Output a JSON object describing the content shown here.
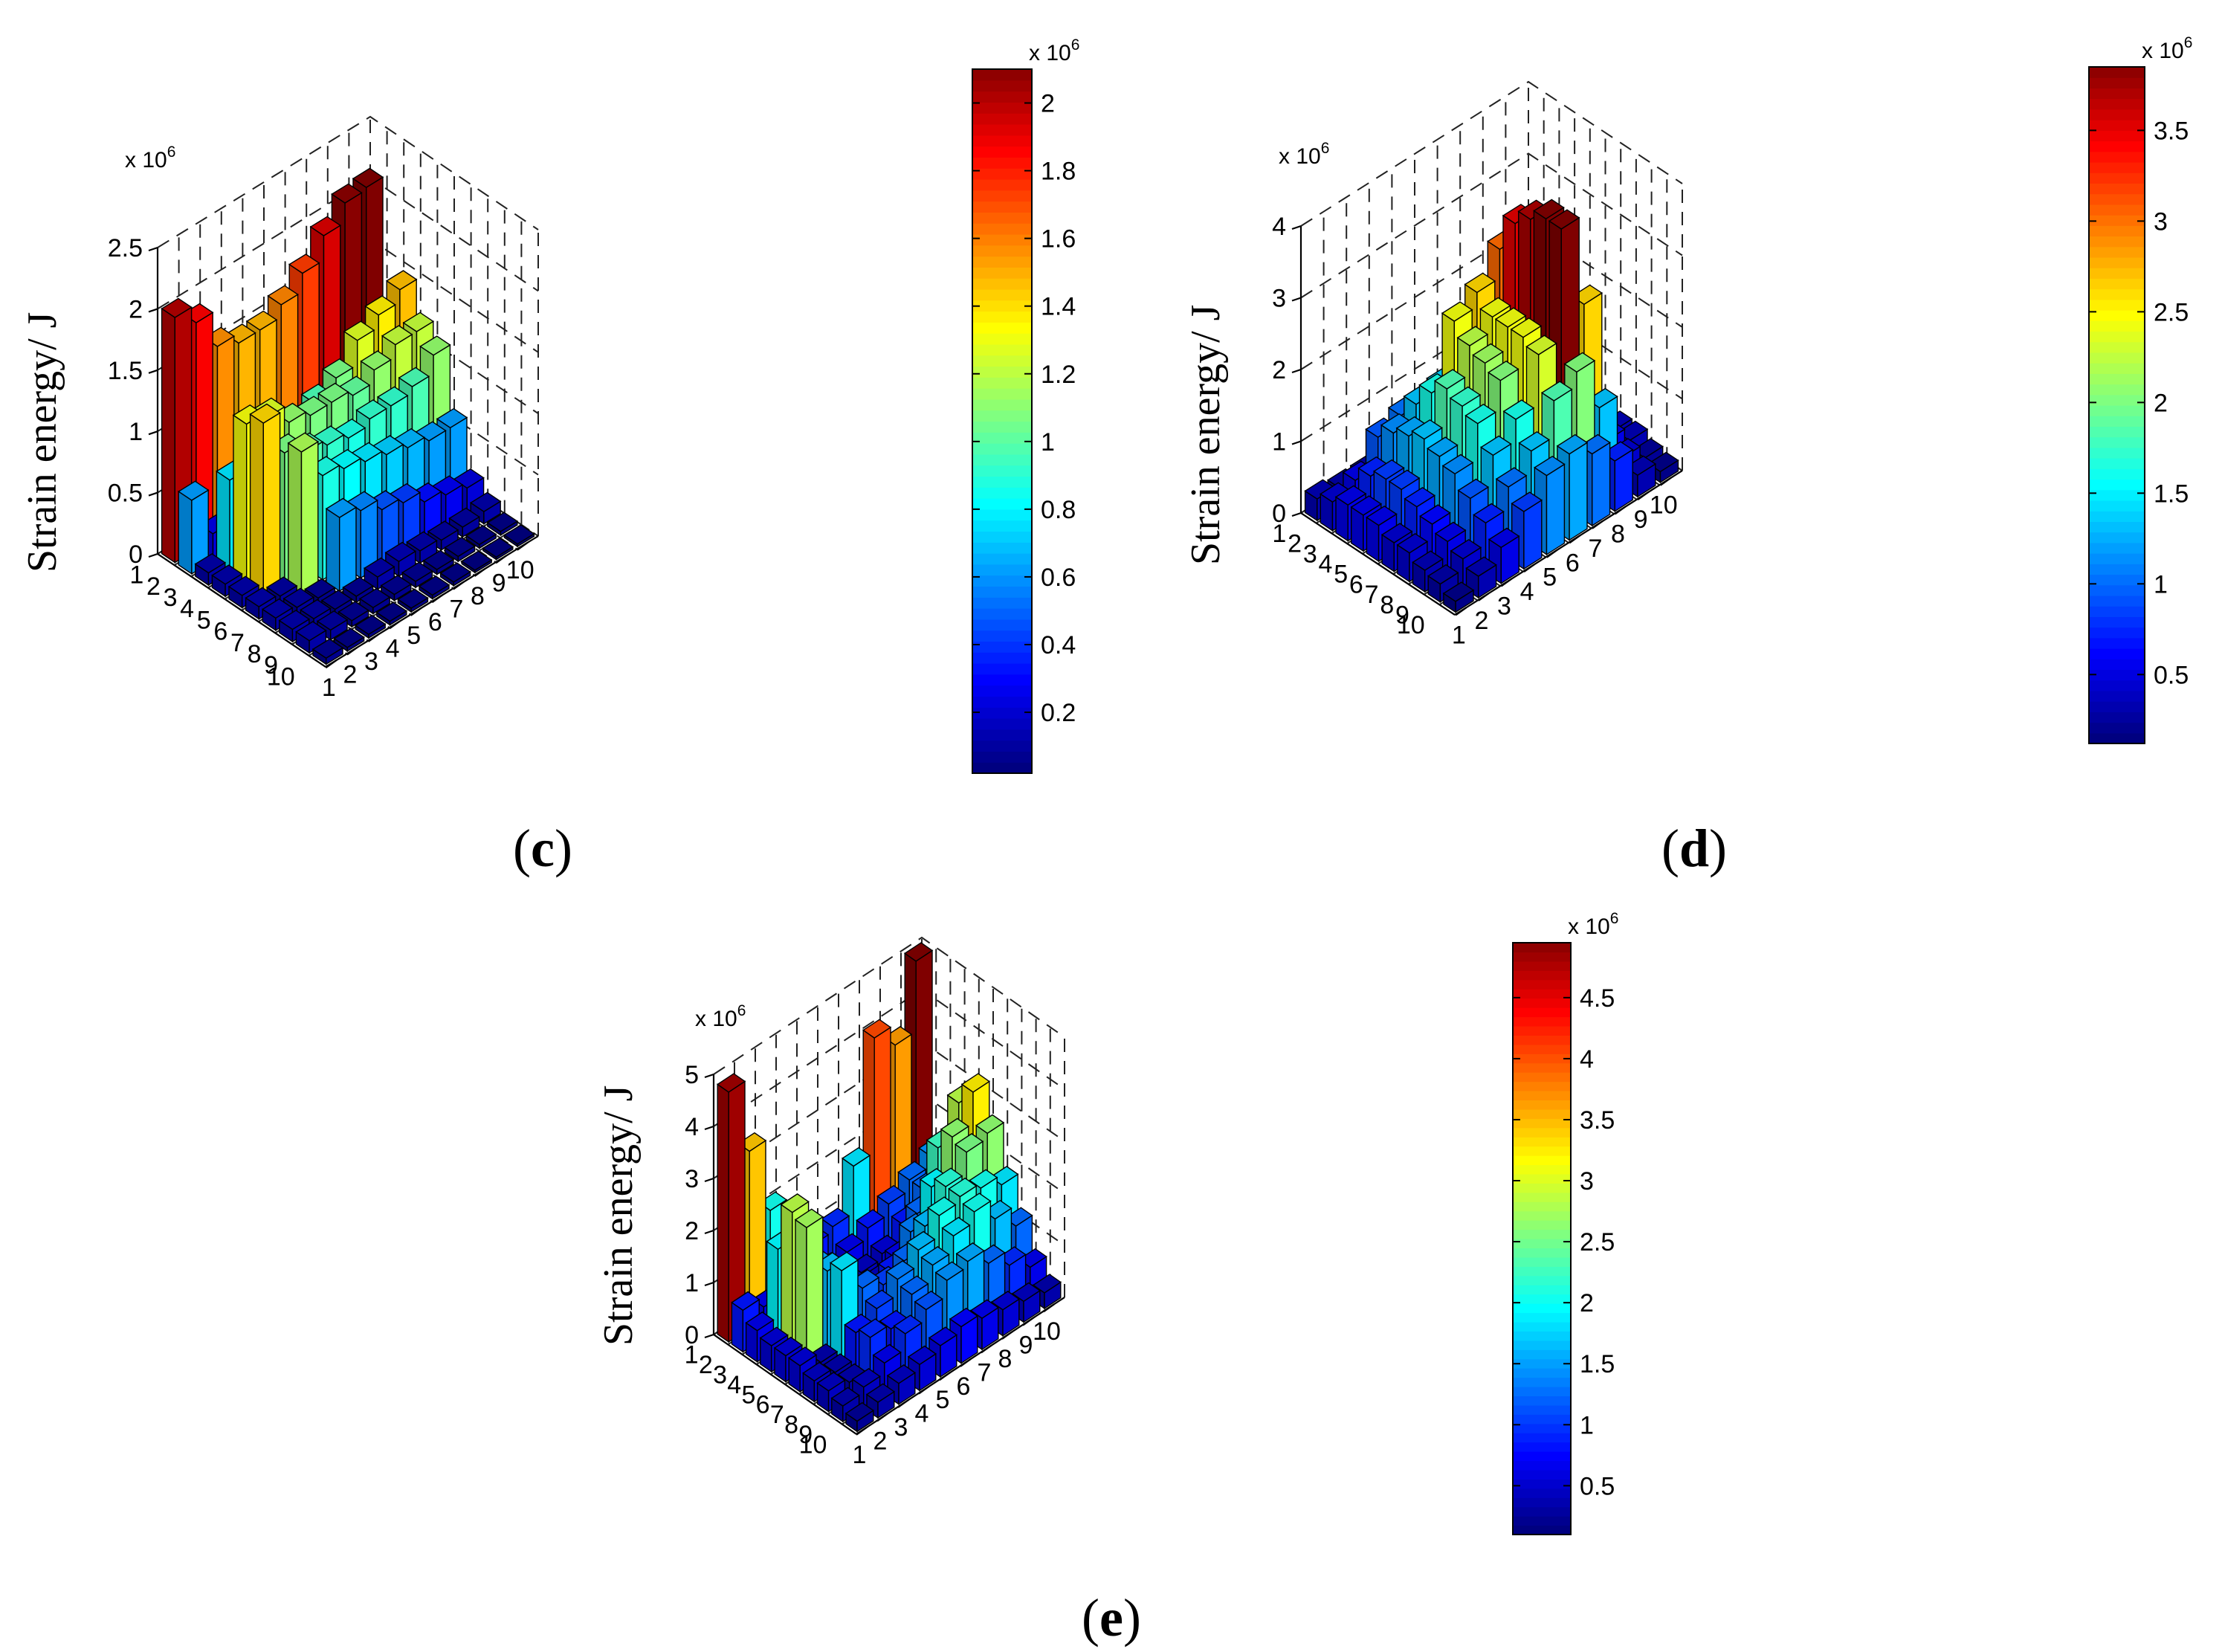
{
  "figure": {
    "colormap": "jet",
    "panels": [
      {
        "id": "c",
        "label_open": "(",
        "label_letter": "c",
        "label_close": ")"
      },
      {
        "id": "d",
        "label_open": "(",
        "label_letter": "d",
        "label_close": ")"
      },
      {
        "id": "e",
        "label_open": "(",
        "label_letter": "e",
        "label_close": ")"
      }
    ]
  },
  "chart_data": [
    {
      "type": "bar3d",
      "panel": "c",
      "title": "(c)",
      "zlabel": "Strain energy/ J",
      "z_multiplier_text": "x 10",
      "z_multiplier_exp": "6",
      "row_ticks": [
        "1",
        "2",
        "3",
        "4",
        "5",
        "6",
        "7",
        "8",
        "9",
        "10"
      ],
      "col_ticks": [
        "1",
        "2",
        "3",
        "4",
        "5",
        "6",
        "7",
        "8",
        "9",
        "10"
      ],
      "zlim": [
        0,
        2.5
      ],
      "z_ticks": [
        0,
        0.5,
        1,
        1.5,
        2,
        2.5
      ],
      "z_tick_labels": [
        "0",
        "0.5",
        "1",
        "1.5",
        "2",
        "2.5"
      ],
      "colorbar": {
        "range": [
          0.02,
          2.1
        ],
        "ticks": [
          0.2,
          0.4,
          0.6,
          0.8,
          1,
          1.2,
          1.4,
          1.6,
          1.8,
          2
        ],
        "tick_labels": [
          "0.2",
          "0.4",
          "0.6",
          "0.8",
          "1",
          "1.2",
          "1.4",
          "1.6",
          "1.8",
          "2"
        ],
        "multiplier_text": "x 10",
        "multiplier_exp": "6"
      },
      "values": [
        [
          2.0,
          1.85,
          1.55,
          1.47,
          1.47,
          1.57,
          1.72,
          1.92,
          2.08,
          2.1
        ],
        [
          0.6,
          0.22,
          0.15,
          0.2,
          0.25,
          0.3,
          0.45,
          0.55,
          0.65,
          0.75
        ],
        [
          0.1,
          0.75,
          0.7,
          0.8,
          0.85,
          0.95,
          1.05,
          1.25,
          1.35,
          1.45
        ],
        [
          0.1,
          1.3,
          1.25,
          1.1,
          1.05,
          1.05,
          1.0,
          1.1,
          1.2,
          1.2
        ],
        [
          0.1,
          1.4,
          1.05,
          0.95,
          0.9,
          0.85,
          0.9,
          0.9,
          0.95,
          1.1
        ],
        [
          0.1,
          0.08,
          1.15,
          0.85,
          0.8,
          0.75,
          0.7,
          0.65,
          0.6,
          0.6
        ],
        [
          0.1,
          0.08,
          0.05,
          0.6,
          0.55,
          0.45,
          0.4,
          0.3,
          0.25,
          0.2
        ],
        [
          0.1,
          0.08,
          0.05,
          0.05,
          0.1,
          0.12,
          0.1,
          0.08,
          0.08,
          0.1
        ],
        [
          0.1,
          0.08,
          0.05,
          0.05,
          0.05,
          0.05,
          0.04,
          0.04,
          0.03,
          0.03
        ],
        [
          0.05,
          0.03,
          0.03,
          0.03,
          0.03,
          0.03,
          0.03,
          0.02,
          0.02,
          0.02
        ]
      ]
    },
    {
      "type": "bar3d",
      "panel": "d",
      "title": "(d)",
      "zlabel": "Strain energy/ J",
      "z_multiplier_text": "x 10",
      "z_multiplier_exp": "6",
      "row_ticks": [
        "1",
        "2",
        "3",
        "4",
        "5",
        "6",
        "7",
        "8",
        "9",
        "10"
      ],
      "col_ticks": [
        "1",
        "2",
        "3",
        "4",
        "5",
        "6",
        "7",
        "8",
        "9",
        "10"
      ],
      "zlim": [
        0,
        4
      ],
      "z_ticks": [
        0,
        1,
        2,
        3,
        4
      ],
      "z_tick_labels": [
        "0",
        "1",
        "2",
        "3",
        "4"
      ],
      "colorbar": {
        "range": [
          0.12,
          3.85
        ],
        "ticks": [
          0.5,
          1,
          1.5,
          2,
          2.5,
          3,
          3.5
        ],
        "tick_labels": [
          "0.5",
          "1",
          "1.5",
          "2",
          "2.5",
          "3",
          "3.5"
        ],
        "multiplier_text": "x 10",
        "multiplier_exp": "6"
      },
      "values": [
        [
          0.3,
          0.25,
          0.25,
          0.3,
          0.4,
          0.45,
          0.5,
          0.45,
          0.35,
          0.3
        ],
        [
          0.4,
          0.5,
          0.9,
          1.0,
          0.9,
          0.6,
          0.45,
          0.35,
          0.3,
          0.25
        ],
        [
          0.5,
          0.7,
          1.1,
          1.3,
          1.35,
          1.2,
          0.7,
          0.45,
          0.35,
          0.3
        ],
        [
          0.5,
          0.8,
          1.2,
          1.6,
          2.4,
          2.6,
          3.0,
          1.2,
          0.6,
          0.4
        ],
        [
          0.5,
          0.8,
          1.3,
          1.8,
          2.2,
          2.4,
          3.5,
          1.2,
          0.7,
          0.4
        ],
        [
          0.4,
          0.7,
          1.2,
          1.7,
          2.1,
          2.4,
          3.7,
          1.0,
          0.7,
          0.4
        ],
        [
          0.4,
          0.6,
          1.1,
          1.6,
          2.0,
          2.4,
          3.85,
          1.0,
          0.6,
          0.3
        ],
        [
          0.3,
          0.5,
          0.9,
          1.3,
          1.6,
          2.3,
          3.85,
          2.6,
          0.5,
          0.3
        ],
        [
          0.25,
          0.4,
          0.7,
          1.0,
          1.3,
          1.8,
          2.0,
          1.3,
          0.4,
          0.2
        ],
        [
          0.15,
          0.3,
          0.5,
          0.8,
          1.1,
          1.2,
          1.0,
          0.7,
          0.3,
          0.15
        ]
      ]
    },
    {
      "type": "bar3d",
      "panel": "e",
      "title": "(e)",
      "zlabel": "Strain energy/ J",
      "z_multiplier_text": "x 10",
      "z_multiplier_exp": "6",
      "row_ticks": [
        "1",
        "2",
        "3",
        "4",
        "5",
        "6",
        "7",
        "8",
        "9",
        "10"
      ],
      "col_ticks": [
        "1",
        "2",
        "3",
        "4",
        "5",
        "6",
        "7",
        "8",
        "9",
        "10"
      ],
      "zlim": [
        0,
        5
      ],
      "z_ticks": [
        0,
        1,
        2,
        3,
        4,
        5
      ],
      "z_tick_labels": [
        "0",
        "1",
        "2",
        "3",
        "4",
        "5"
      ],
      "colorbar": {
        "range": [
          0.1,
          4.95
        ],
        "ticks": [
          0.5,
          1,
          1.5,
          2,
          2.5,
          3,
          3.5,
          4,
          4.5
        ],
        "tick_labels": [
          "0.5",
          "1",
          "1.5",
          "2",
          "2.5",
          "3",
          "3.5",
          "4",
          "4.5"
        ],
        "multiplier_text": "x 10",
        "multiplier_exp": "6"
      },
      "values": [
        [
          4.8,
          3.4,
          2.0,
          1.2,
          0.8,
          0.9,
          1.8,
          4.0,
          3.6,
          4.95
        ],
        [
          0.8,
          0.6,
          0.5,
          0.4,
          0.5,
          0.6,
          0.8,
          1.0,
          1.2,
          1.4
        ],
        [
          0.6,
          1.9,
          0.4,
          0.3,
          0.3,
          0.4,
          0.5,
          0.8,
          1.2,
          1.6
        ],
        [
          0.5,
          2.8,
          1.5,
          0.4,
          0.3,
          0.4,
          0.6,
          1.2,
          2.2,
          2.8
        ],
        [
          0.5,
          2.7,
          1.6,
          0.5,
          0.6,
          0.8,
          1.3,
          1.9,
          2.6,
          3.2
        ],
        [
          0.5,
          0.3,
          1.8,
          1.2,
          1.0,
          1.2,
          1.6,
          2.1,
          2.5,
          2.6
        ],
        [
          0.4,
          0.3,
          0.8,
          1.0,
          1.3,
          1.6,
          2.0,
          2.1,
          2.0,
          1.8
        ],
        [
          0.4,
          0.3,
          0.9,
          0.8,
          1.2,
          1.5,
          1.8,
          2.0,
          1.6,
          1.2
        ],
        [
          0.3,
          0.4,
          0.6,
          0.9,
          1.1,
          1.4,
          1.5,
          1.2,
          0.9,
          0.6
        ],
        [
          0.2,
          0.3,
          0.4,
          0.5,
          0.6,
          0.7,
          0.6,
          0.5,
          0.4,
          0.3
        ]
      ]
    }
  ]
}
